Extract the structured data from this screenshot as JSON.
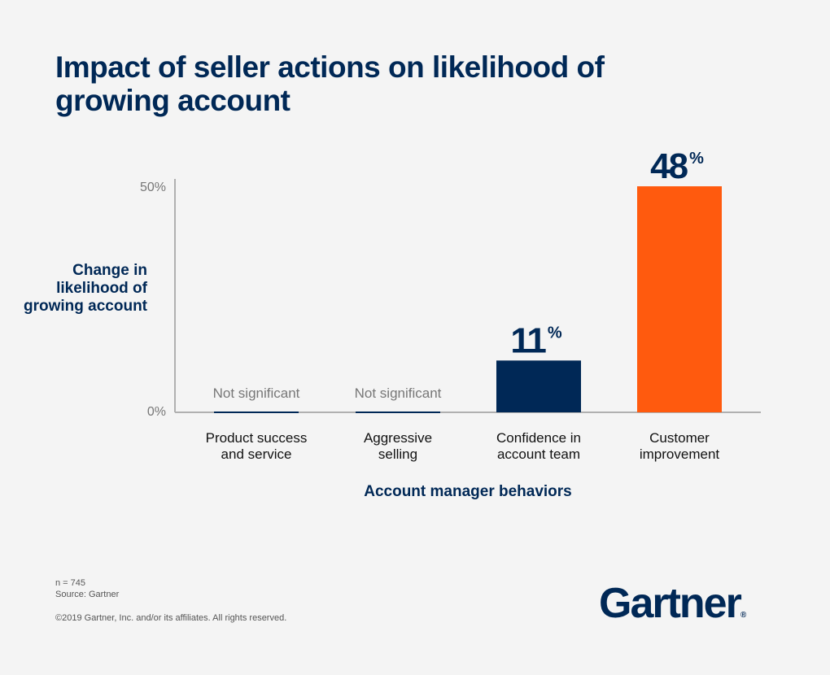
{
  "chart_data": {
    "type": "bar",
    "title": "Impact of seller actions on likelihood of growing account",
    "xlabel": "Account manager behaviors",
    "ylabel": "Change in likelihood of growing account",
    "ylim": [
      0,
      50
    ],
    "yticks": [
      "0%",
      "50%"
    ],
    "categories": [
      "Product success and service",
      "Aggressive selling",
      "Confidence in account team",
      "Customer improvement"
    ],
    "category_lines": [
      [
        "Product success",
        "and service"
      ],
      [
        "Aggressive",
        "selling"
      ],
      [
        "Confidence in",
        "account team"
      ],
      [
        "Customer",
        "improvement"
      ]
    ],
    "values": [
      0,
      0,
      11,
      48
    ],
    "data_labels": [
      "Not significant",
      "Not significant",
      "11",
      "48"
    ],
    "significant": [
      false,
      false,
      true,
      true
    ],
    "colors": [
      "#002856",
      "#002856",
      "#002856",
      "#ff5a0e"
    ],
    "grid": false
  },
  "notes": {
    "n": "n = 745",
    "source": "Source: Gartner",
    "copyright": "©2019 Gartner, Inc. and/or its affiliates. All rights reserved."
  },
  "logo": {
    "text": "Gartner",
    "mark": "®"
  },
  "colors": {
    "background": "#f4f4f4",
    "navy": "#002856",
    "orange": "#ff5a0e",
    "axis": "#b0b0b0"
  }
}
